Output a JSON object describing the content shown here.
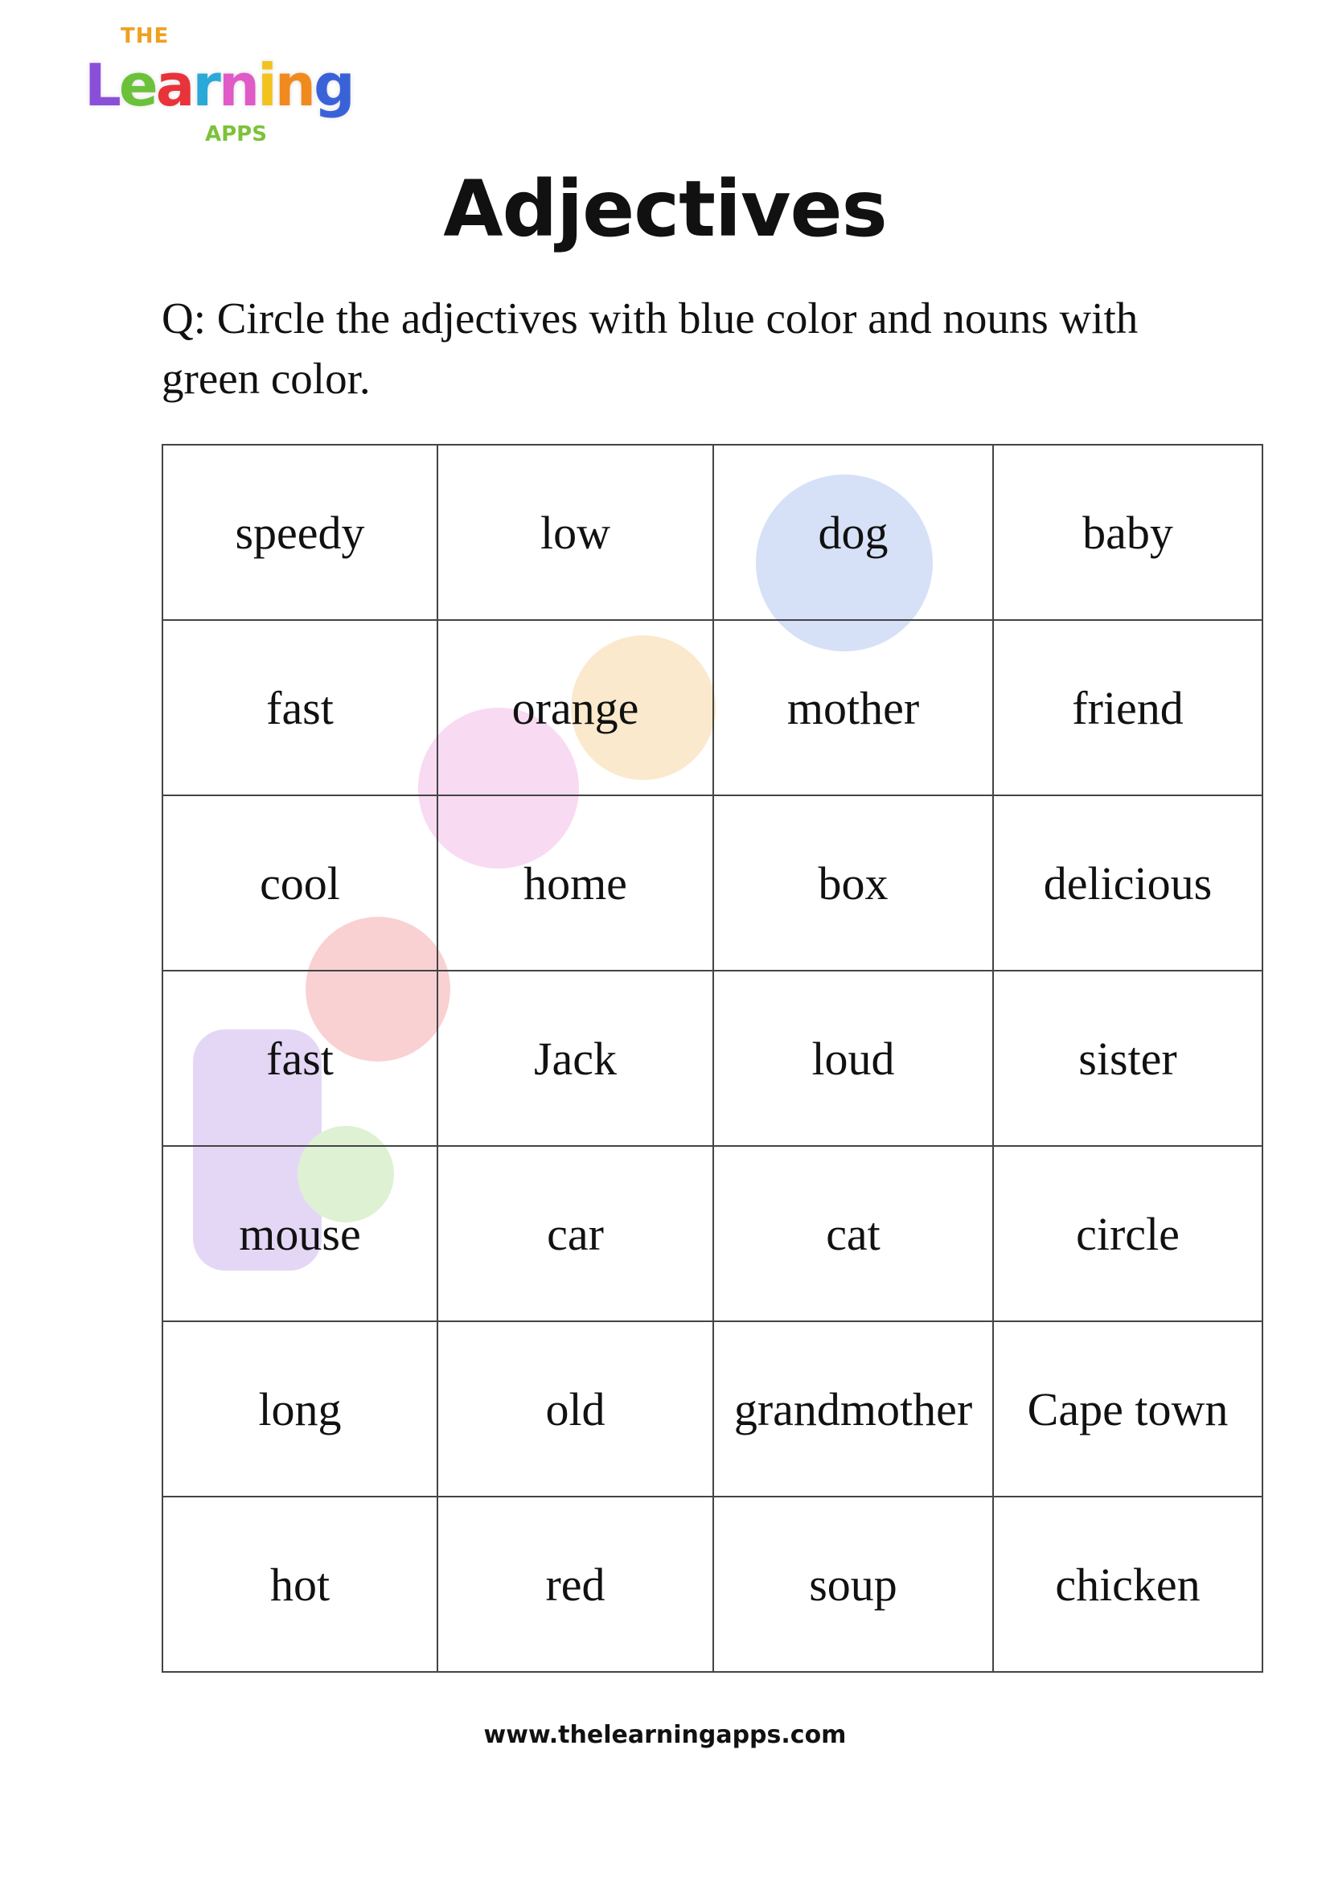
{
  "logo": {
    "text_top": "THE",
    "text_main": "Learning",
    "text_bottom": "APPS"
  },
  "title": "Adjectives",
  "question": "Q: Circle the adjectives with blue color and nouns with green color.",
  "grid": [
    [
      "speedy",
      "low",
      "dog",
      "baby"
    ],
    [
      "fast",
      "orange",
      "mother",
      "friend"
    ],
    [
      "cool",
      "home",
      "box",
      "delicious"
    ],
    [
      "fast",
      "Jack",
      "loud",
      "sister"
    ],
    [
      "mouse",
      "car",
      "cat",
      "circle"
    ],
    [
      "long",
      "old",
      "grandmother",
      "Cape town"
    ],
    [
      "hot",
      "red",
      "soup",
      "chicken"
    ]
  ],
  "footer": "www.thelearningapps.com",
  "colors": {
    "logo_letters": [
      "#8a4fd8",
      "#6cc13a",
      "#e8333a",
      "#2aa8d8",
      "#e05ac8",
      "#f2c21e",
      "#f08a1e",
      "#3a62d8"
    ]
  }
}
